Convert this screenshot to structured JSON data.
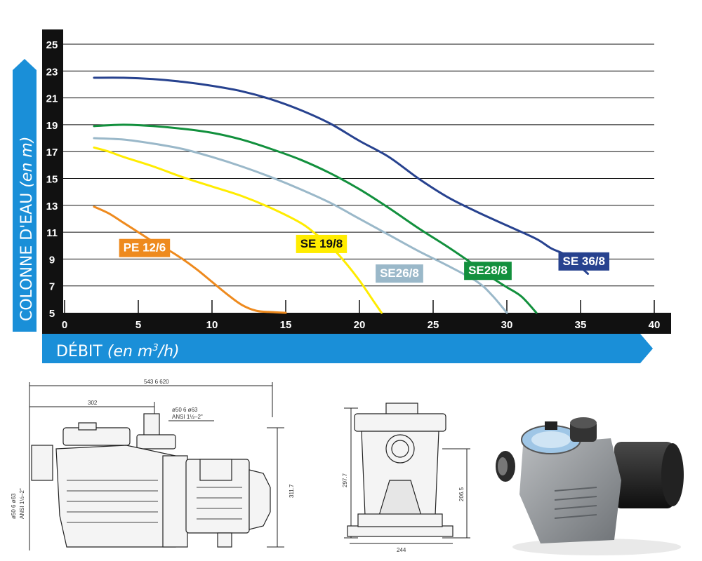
{
  "chart_data": {
    "type": "line",
    "xlabel": "DÉBIT",
    "xlabel_unit_prefix": "(en m",
    "xlabel_unit_sup": "3",
    "xlabel_unit_suffix": "/h)",
    "ylabel": "COLONNE D'EAU",
    "ylabel_unit": "(en m)",
    "xlim": [
      0,
      40
    ],
    "ylim": [
      5,
      25
    ],
    "x_ticks": [
      "0",
      "5",
      "10",
      "15",
      "20",
      "25",
      "30",
      "35",
      "40"
    ],
    "y_ticks": [
      "5",
      "7",
      "9",
      "11",
      "13",
      "15",
      "17",
      "19",
      "21",
      "23",
      "25"
    ],
    "grid": "horizontal",
    "series": [
      {
        "name": "PE 12/6",
        "color": "#ee8a1e",
        "label_at": [
          3.7,
          10.5
        ],
        "points": [
          [
            2,
            12.9
          ],
          [
            3,
            12.4
          ],
          [
            4,
            11.7
          ],
          [
            5,
            11.0
          ],
          [
            6,
            10.3
          ],
          [
            7,
            9.7
          ],
          [
            8,
            9.0
          ],
          [
            9,
            8.2
          ],
          [
            10,
            7.3
          ],
          [
            11,
            6.4
          ],
          [
            12,
            5.6
          ],
          [
            13,
            5.15
          ],
          [
            14,
            5.05
          ],
          [
            15,
            5.0
          ]
        ]
      },
      {
        "name": "SE 19/8",
        "color": "#ffec00",
        "label_at": [
          15.7,
          10.8
        ],
        "points": [
          [
            2,
            17.3
          ],
          [
            3,
            17.0
          ],
          [
            4,
            16.6
          ],
          [
            6,
            15.9
          ],
          [
            8,
            15.1
          ],
          [
            10,
            14.4
          ],
          [
            12,
            13.7
          ],
          [
            14,
            12.8
          ],
          [
            16,
            11.7
          ],
          [
            17,
            10.9
          ],
          [
            18,
            10.0
          ],
          [
            19,
            8.8
          ],
          [
            20,
            7.4
          ],
          [
            21,
            5.8
          ],
          [
            21.5,
            5.0
          ]
        ]
      },
      {
        "name": "SE26/8",
        "color": "#9ab8c9",
        "label_at": [
          21.1,
          8.6
        ],
        "points": [
          [
            2,
            18.0
          ],
          [
            4,
            17.9
          ],
          [
            6,
            17.6
          ],
          [
            8,
            17.2
          ],
          [
            10,
            16.6
          ],
          [
            12,
            15.9
          ],
          [
            14,
            15.1
          ],
          [
            16,
            14.2
          ],
          [
            18,
            13.2
          ],
          [
            20,
            12.0
          ],
          [
            22,
            10.8
          ],
          [
            24,
            9.6
          ],
          [
            26,
            8.5
          ],
          [
            28,
            7.3
          ],
          [
            29,
            6.3
          ],
          [
            30,
            5.0
          ]
        ]
      },
      {
        "name": "SE28/8",
        "color": "#12903d",
        "label_at": [
          27.1,
          8.8
        ],
        "points": [
          [
            2,
            18.9
          ],
          [
            4,
            19.0
          ],
          [
            6,
            18.9
          ],
          [
            8,
            18.7
          ],
          [
            10,
            18.4
          ],
          [
            12,
            17.9
          ],
          [
            14,
            17.2
          ],
          [
            16,
            16.4
          ],
          [
            18,
            15.4
          ],
          [
            20,
            14.2
          ],
          [
            22,
            12.8
          ],
          [
            24,
            11.3
          ],
          [
            26,
            9.9
          ],
          [
            28,
            8.4
          ],
          [
            29,
            7.6
          ],
          [
            30,
            6.9
          ],
          [
            31,
            6.2
          ],
          [
            32,
            5.0
          ]
        ]
      },
      {
        "name": "SE 36/8",
        "color": "#27428f",
        "label_at": [
          33.5,
          9.5
        ],
        "points": [
          [
            2,
            22.5
          ],
          [
            4,
            22.5
          ],
          [
            6,
            22.4
          ],
          [
            8,
            22.2
          ],
          [
            10,
            21.9
          ],
          [
            12,
            21.5
          ],
          [
            14,
            20.9
          ],
          [
            16,
            20.1
          ],
          [
            18,
            19.1
          ],
          [
            20,
            17.8
          ],
          [
            22,
            16.6
          ],
          [
            24,
            15.0
          ],
          [
            26,
            13.6
          ],
          [
            28,
            12.5
          ],
          [
            30,
            11.5
          ],
          [
            32,
            10.5
          ],
          [
            33,
            9.8
          ],
          [
            34,
            9.3
          ],
          [
            35,
            8.4
          ],
          [
            35.5,
            7.9
          ]
        ]
      }
    ]
  },
  "drawing": {
    "front": {
      "overall_width": "543  6  620",
      "partial_width": "302",
      "outlet_line1": "ø50  6  ø63",
      "outlet_line2": "ANSI  1½–2\"",
      "inlet_line1": "ø50  6  ø63",
      "inlet_line2": "ANSI  1½–2\"",
      "height": "311.7"
    },
    "side": {
      "height": "297.7",
      "axis_height": "206.5",
      "base_width": "244"
    }
  }
}
